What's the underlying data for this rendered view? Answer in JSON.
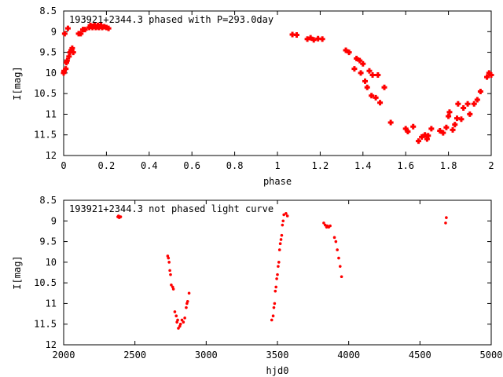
{
  "chart_data": [
    {
      "type": "scatter",
      "title": "193921+2344.3 phased with P=293.0day",
      "xlabel": "phase",
      "ylabel": "I[mag]",
      "xlim": [
        0,
        2
      ],
      "ylim": [
        12,
        8.5
      ],
      "y_inverted": true,
      "grid": false,
      "xticks": [
        "0",
        "0.2",
        "0.4",
        "0.6",
        "0.8",
        "1",
        "1.2",
        "1.4",
        "1.6",
        "1.8",
        "2"
      ],
      "yticks": [
        "8.5",
        "9",
        "9.5",
        "10",
        "10.5",
        "11",
        "11.5",
        "12"
      ],
      "marker": "plus-bold",
      "color": "#ff0000",
      "series": [
        {
          "x": [
            0.0,
            0.002,
            0.005,
            0.01,
            0.013,
            0.016,
            0.02,
            0.025,
            0.03,
            0.035,
            0.04,
            0.045,
            0.07,
            0.08,
            0.09,
            0.1,
            0.12,
            0.125,
            0.13,
            0.135,
            0.14,
            0.145,
            0.15,
            0.155,
            0.16,
            0.165,
            0.17,
            0.175,
            0.18,
            0.19,
            0.2,
            0.21,
            1.07,
            1.09,
            1.14,
            1.155,
            1.17,
            1.19,
            1.21,
            1.32,
            1.335,
            1.36,
            1.37,
            1.385,
            1.39,
            1.4,
            1.41,
            1.42,
            1.43,
            1.44,
            1.445,
            1.46,
            1.47,
            1.48,
            1.5,
            1.53,
            1.6,
            1.61,
            1.635,
            1.66,
            1.675,
            1.69,
            1.7,
            1.705,
            1.72,
            1.76,
            1.775,
            1.79,
            1.8,
            1.805,
            1.82,
            1.83,
            1.84,
            1.845,
            1.86,
            1.87,
            1.89,
            1.9,
            1.92,
            1.935,
            1.95,
            1.98,
            1.99,
            2.0
          ],
          "y": [
            10.0,
            9.95,
            9.05,
            9.9,
            9.75,
            9.7,
            8.92,
            9.6,
            9.5,
            9.45,
            9.4,
            9.5,
            9.05,
            9.05,
            8.95,
            8.95,
            8.9,
            8.85,
            8.87,
            8.9,
            8.87,
            8.85,
            8.9,
            8.88,
            8.85,
            8.9,
            8.87,
            8.85,
            8.9,
            8.88,
            8.9,
            8.92,
            9.07,
            9.08,
            9.18,
            9.15,
            9.2,
            9.17,
            9.18,
            9.45,
            9.5,
            9.9,
            9.65,
            9.7,
            10.0,
            9.78,
            10.2,
            10.35,
            9.95,
            10.55,
            10.05,
            10.6,
            10.05,
            10.72,
            10.35,
            11.2,
            11.35,
            11.42,
            11.3,
            11.65,
            11.55,
            11.5,
            11.6,
            11.52,
            11.35,
            11.4,
            11.45,
            11.32,
            11.05,
            10.95,
            11.38,
            11.25,
            11.1,
            10.75,
            11.12,
            10.85,
            10.75,
            11.0,
            10.75,
            10.65,
            10.45,
            10.1,
            10.0,
            10.05
          ]
        }
      ]
    },
    {
      "type": "scatter",
      "title": "193921+2344.3 not phased light curve",
      "xlabel": "hjd0",
      "ylabel": "I[mag]",
      "xlim": [
        2000,
        5000
      ],
      "ylim": [
        12,
        8.5
      ],
      "y_inverted": true,
      "grid": false,
      "xticks": [
        "2000",
        "2500",
        "3000",
        "3500",
        "4000",
        "4500",
        "5000"
      ],
      "yticks": [
        "8.5",
        "9",
        "9.5",
        "10",
        "10.5",
        "11",
        "11.5",
        "12"
      ],
      "marker": "dot",
      "color": "#ff0000",
      "series": [
        {
          "x": [
            2380,
            2385,
            2390,
            2395,
            2400,
            2730,
            2735,
            2740,
            2745,
            2750,
            2755,
            2765,
            2770,
            2780,
            2790,
            2795,
            2800,
            2805,
            2815,
            2820,
            2830,
            2840,
            2850,
            2860,
            2865,
            2870,
            2880,
            3460,
            3470,
            3475,
            3480,
            3485,
            3490,
            3495,
            3500,
            3505,
            3510,
            3515,
            3520,
            3525,
            3530,
            3535,
            3540,
            3545,
            3560,
            3570,
            3825,
            3835,
            3845,
            3850,
            3860,
            3870,
            3900,
            3910,
            3920,
            3930,
            3940,
            3950,
            4680,
            4685
          ],
          "y": [
            8.9,
            8.88,
            8.92,
            8.9,
            8.9,
            9.85,
            9.9,
            10.0,
            10.2,
            10.3,
            10.55,
            10.6,
            10.65,
            11.2,
            11.3,
            11.45,
            11.4,
            11.6,
            11.55,
            11.5,
            11.4,
            11.45,
            11.35,
            11.1,
            11.0,
            10.95,
            10.75,
            11.4,
            11.3,
            11.1,
            11.0,
            10.7,
            10.6,
            10.4,
            10.3,
            10.1,
            10.0,
            9.7,
            9.55,
            9.45,
            9.35,
            9.1,
            9.0,
            8.85,
            8.82,
            8.88,
            9.05,
            9.1,
            9.15,
            9.12,
            9.15,
            9.12,
            9.4,
            9.5,
            9.7,
            9.9,
            10.1,
            10.35,
            9.05,
            8.92
          ]
        }
      ]
    }
  ]
}
